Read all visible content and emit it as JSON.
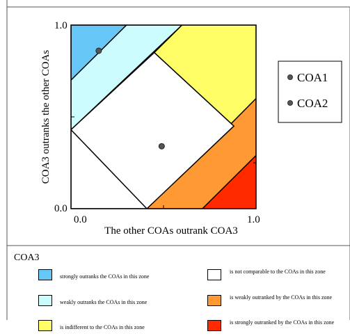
{
  "chart_data": {
    "type": "scatter",
    "x_axis": {
      "label": "The other COAs outrank COA3",
      "range": [
        0.0,
        1.0
      ],
      "tick_labels": [
        "0.0",
        "1.0"
      ]
    },
    "y_axis": {
      "label": "COA3 outranks the other COAs",
      "range": [
        0.0,
        1.0
      ],
      "tick_labels": [
        "0.0",
        "1.0"
      ]
    },
    "series": [
      {
        "name": "COA1",
        "x": 0.15,
        "y": 0.86
      },
      {
        "name": "COA2",
        "x": 0.49,
        "y": 0.34
      }
    ],
    "series_legend_placement": "right",
    "zones": [
      {
        "key": "strong_outrank",
        "color": "#66c6f5"
      },
      {
        "key": "weak_outrank",
        "color": "#ccfcfd"
      },
      {
        "key": "indifferent",
        "color": "#fffe66"
      },
      {
        "key": "not_comparable",
        "color": "#ffffff"
      },
      {
        "key": "weakly_outranked",
        "color": "#ff9933"
      },
      {
        "key": "strongly_outranked",
        "color": "#ff2a00"
      }
    ]
  },
  "zone_legend": {
    "title": "COA3",
    "items": [
      {
        "label": "strongly outranks the COAs in this zone",
        "color": "#66c6f5"
      },
      {
        "label": "weakly outranks the COAs in this zone",
        "color": "#ccfcfd"
      },
      {
        "label": "is indifferent to the COAs in this zone",
        "color": "#fffe66"
      },
      {
        "label": "is not comparable to the COAs in this zone",
        "color": "#ffffff"
      },
      {
        "label": "is weakly outranked by the COAs in this zone",
        "color": "#ff9933"
      },
      {
        "label": "is strongly outranked by the COAs in this zone",
        "color": "#ff2a00"
      }
    ]
  }
}
